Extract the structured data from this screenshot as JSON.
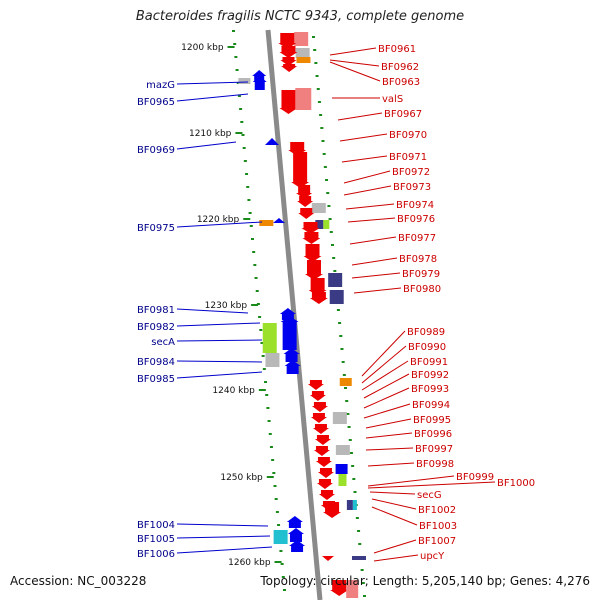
{
  "title": "Bacteroides fragilis NCTC 9343, complete genome",
  "footer": {
    "accession": "Accession: NC_003228",
    "summary": "Topology: circular; Length: 5,205,140 bp; Genes: 4,276"
  },
  "ticks": [
    "1200 kbp",
    "1210 kbp",
    "1220 kbp",
    "1230 kbp",
    "1240 kbp",
    "1250 kbp",
    "1260 kbp"
  ],
  "colors": {
    "forward_gene": "#0000ee",
    "reverse_gene": "#ee0000",
    "label_left": "#00008b",
    "label_right": "#cc0000",
    "backbone": "#8a8a8a",
    "ticks": "#1a8a1a",
    "feature_pink": "#f08080",
    "feature_gray": "#b8b8b8",
    "feature_orange": "#ee8800",
    "feature_navy": "#3b3b85",
    "feature_green": "#9be02a",
    "feature_cyan": "#20c0d0"
  },
  "left_labels": [
    "mazG",
    "BF0965",
    "BF0969",
    "BF0975",
    "BF0981",
    "BF0982",
    "secA",
    "BF0984",
    "BF0985",
    "BF1004",
    "BF1005",
    "BF1006"
  ],
  "right_labels": [
    "BF0961",
    "BF0962",
    "BF0963",
    "valS",
    "BF0967",
    "BF0970",
    "BF0971",
    "BF0972",
    "BF0973",
    "BF0974",
    "BF0976",
    "BF0977",
    "BF0978",
    "BF0979",
    "BF0980",
    "BF0989",
    "BF0990",
    "BF0991",
    "BF0992",
    "BF0993",
    "BF0994",
    "BF0995",
    "BF0996",
    "BF0997",
    "BF0998",
    "BF0999",
    "BF1000",
    "secG",
    "BF1002",
    "BF1003",
    "BF1007",
    "upcY"
  ]
}
